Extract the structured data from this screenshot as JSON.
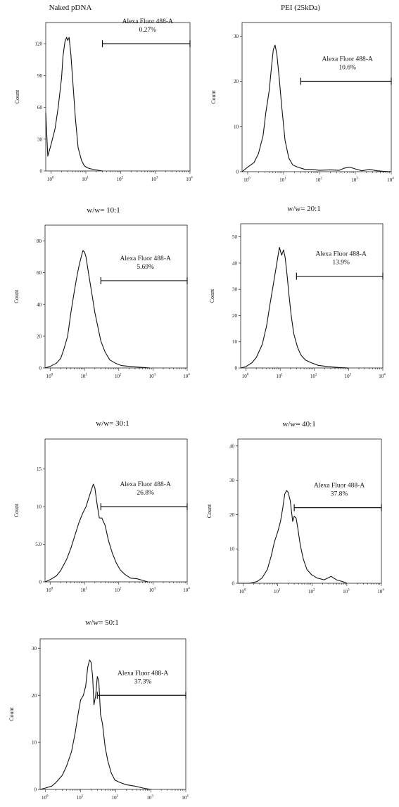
{
  "figure": {
    "y_axis_label": "Count"
  },
  "chart_data": [
    {
      "type": "histogram",
      "title": "Naked pDNA",
      "ylabel": "Count",
      "x_scale": "log",
      "xlim": [
        0.7,
        10000
      ],
      "ylim": [
        0,
        140
      ],
      "yticks": [
        0,
        30,
        60,
        90,
        120
      ],
      "x_ticks": [
        {
          "base": "10",
          "exp": "0"
        },
        {
          "base": "10",
          "exp": "1"
        },
        {
          "base": "10",
          "exp": "2"
        },
        {
          "base": "10",
          "exp": "3"
        },
        {
          "base": "10",
          "exp": "4"
        }
      ],
      "gate": {
        "name": "Alexa Fluor 488-A",
        "percent": "0.27%",
        "range": [
          30,
          10000
        ],
        "level": 120
      },
      "series": [
        {
          "x": [
            0.7,
            0.8,
            1.0,
            1.3,
            1.6,
            2.0,
            2.2,
            2.5,
            2.8,
            3.0,
            3.3,
            3.7,
            4.2,
            5.0,
            6.0,
            7.5,
            9.0,
            11.0,
            14.0,
            20.0,
            30.0
          ],
          "y": [
            55,
            14,
            25,
            40,
            60,
            88,
            108,
            122,
            126,
            123,
            126,
            110,
            85,
            50,
            22,
            10,
            5,
            3,
            2,
            1,
            0
          ]
        }
      ]
    },
    {
      "type": "histogram",
      "title": "PEI (25kDa)",
      "ylabel": "Count",
      "x_scale": "log",
      "xlim": [
        0.7,
        10000
      ],
      "ylim": [
        0,
        33
      ],
      "yticks": [
        0,
        10,
        20,
        30
      ],
      "x_ticks": [
        {
          "base": "10",
          "exp": "0"
        },
        {
          "base": "10",
          "exp": "1"
        },
        {
          "base": "10",
          "exp": "2"
        },
        {
          "base": "10",
          "exp": "3"
        },
        {
          "base": "10",
          "exp": "4"
        }
      ],
      "gate": {
        "name": "Alexa Fluor 488-A",
        "percent": "10.6%",
        "range": [
          30,
          10000
        ],
        "level": 20
      },
      "series": [
        {
          "x": [
            0.7,
            1.0,
            1.5,
            2.0,
            2.7,
            3.2,
            4.0,
            4.6,
            5.2,
            5.8,
            6.5,
            7.5,
            9.0,
            11.0,
            14.0,
            18.0,
            25.0,
            40.0,
            60.0,
            100.0,
            200.0,
            350.0,
            500.0,
            700.0,
            1000.0,
            1500.0,
            2500.0,
            4000.0,
            6000.0,
            10000.0
          ],
          "y": [
            0,
            1,
            2,
            4,
            8,
            13,
            18,
            23,
            27,
            28,
            26,
            21,
            14,
            7,
            3,
            1.5,
            1,
            0.5,
            0.5,
            0.3,
            0.4,
            0.3,
            0.8,
            1,
            0.6,
            0.2,
            0.5,
            0.2,
            0.1,
            0
          ]
        }
      ]
    },
    {
      "type": "histogram",
      "title": "w/w= 10:1",
      "ylabel": "Count",
      "x_scale": "log",
      "xlim": [
        0.7,
        10000
      ],
      "ylim": [
        0,
        90
      ],
      "yticks": [
        0,
        20,
        40,
        60,
        80
      ],
      "x_ticks": [
        {
          "base": "10",
          "exp": "0"
        },
        {
          "base": "10",
          "exp": "1"
        },
        {
          "base": "10",
          "exp": "2"
        },
        {
          "base": "10",
          "exp": "3"
        },
        {
          "base": "10",
          "exp": "4"
        }
      ],
      "gate": {
        "name": "Alexa Fluor 488-A",
        "percent": "5.69%",
        "range": [
          30,
          10000
        ],
        "level": 55
      },
      "series": [
        {
          "x": [
            0.7,
            1.0,
            1.5,
            2.0,
            2.5,
            3.2,
            4.0,
            5.0,
            6.0,
            7.0,
            8.0,
            9.0,
            10.0,
            11.0,
            13.0,
            16.0,
            20.0,
            25.0,
            30.0,
            40.0,
            55.0,
            80.0,
            120.0,
            200.0,
            400.0,
            800.0
          ],
          "y": [
            0,
            1,
            3,
            6,
            12,
            20,
            35,
            48,
            58,
            65,
            70,
            74,
            73,
            70,
            60,
            48,
            35,
            25,
            17,
            10,
            5,
            3,
            1.5,
            1,
            0.5,
            0
          ]
        }
      ]
    },
    {
      "type": "histogram",
      "title": "w/w= 20:1",
      "ylabel": "Count",
      "x_scale": "log",
      "xlim": [
        0.7,
        10000
      ],
      "ylim": [
        0,
        55
      ],
      "yticks": [
        0,
        10,
        20,
        30,
        40,
        50
      ],
      "x_ticks": [
        {
          "base": "10",
          "exp": "0"
        },
        {
          "base": "10",
          "exp": "1"
        },
        {
          "base": "10",
          "exp": "2"
        },
        {
          "base": "10",
          "exp": "3"
        },
        {
          "base": "10",
          "exp": "4"
        }
      ],
      "gate": {
        "name": "Alexa Fluor 488-A",
        "percent": "13.9%",
        "range": [
          30,
          10000
        ],
        "level": 35
      },
      "series": [
        {
          "x": [
            0.7,
            1.0,
            1.5,
            2.0,
            3.0,
            4.0,
            5.0,
            6.5,
            8.0,
            9.5,
            11.0,
            12.5,
            14.0,
            16.0,
            18.0,
            21.0,
            25.0,
            32.0,
            40.0,
            55.0,
            80.0,
            130.0,
            250.0,
            500.0,
            1000.0
          ],
          "y": [
            0,
            0.5,
            2,
            4,
            9,
            16,
            24,
            33,
            40,
            46,
            43,
            45,
            42,
            35,
            28,
            20,
            13,
            8,
            5,
            3,
            2,
            1,
            0.5,
            0.2,
            0
          ]
        }
      ]
    },
    {
      "type": "histogram",
      "title": "w/w= 30:1",
      "ylabel": "Count",
      "x_scale": "log",
      "xlim": [
        0.7,
        10000
      ],
      "ylim": [
        0,
        19
      ],
      "yticks": [
        0,
        5,
        10,
        15
      ],
      "ytick_labels": [
        "0",
        "5.0",
        "10",
        "15"
      ],
      "x_ticks": [
        {
          "base": "10",
          "exp": "0"
        },
        {
          "base": "10",
          "exp": "1"
        },
        {
          "base": "10",
          "exp": "2"
        },
        {
          "base": "10",
          "exp": "3"
        },
        {
          "base": "10",
          "exp": "4"
        }
      ],
      "gate": {
        "name": "Alexa Fluor 488-A",
        "percent": "26.8%",
        "range": [
          30,
          10000
        ],
        "level": 10
      },
      "series": [
        {
          "x": [
            0.7,
            1.0,
            1.5,
            2.0,
            3.0,
            4.0,
            5.5,
            7.0,
            9.0,
            11.0,
            14.0,
            16.0,
            18.0,
            20.0,
            23.0,
            27.0,
            32.0,
            40.0,
            50.0,
            65.0,
            85.0,
            110.0,
            150.0,
            220.0,
            350.0,
            500.0,
            700.0
          ],
          "y": [
            0,
            0.3,
            0.8,
            1.5,
            3,
            4.5,
            6.5,
            8,
            9.2,
            10,
            11.5,
            12.3,
            13,
            12.5,
            10.5,
            8.5,
            8.5,
            7.5,
            5.5,
            3.8,
            2.5,
            1.6,
            1.0,
            0.5,
            0.4,
            0.2,
            0
          ]
        }
      ]
    },
    {
      "type": "histogram",
      "title": "w/w= 40:1",
      "ylabel": "Count",
      "x_scale": "log",
      "xlim": [
        0.7,
        10000
      ],
      "ylim": [
        0,
        42
      ],
      "yticks": [
        0,
        10,
        20,
        30,
        40
      ],
      "x_ticks": [
        {
          "base": "10",
          "exp": "0"
        },
        {
          "base": "10",
          "exp": "1"
        },
        {
          "base": "10",
          "exp": "2"
        },
        {
          "base": "10",
          "exp": "3"
        },
        {
          "base": "10",
          "exp": "4"
        }
      ],
      "gate": {
        "name": "Alexa Fluor 488-A",
        "percent": "37.8%",
        "range": [
          30,
          10000
        ],
        "level": 22
      },
      "series": [
        {
          "x": [
            0.7,
            1.5,
            2.5,
            3.5,
            5.0,
            6.5,
            8.0,
            10.0,
            12.0,
            14.0,
            16.0,
            18.0,
            20.0,
            23.0,
            27.0,
            30.0,
            34.0,
            38.0,
            45.0,
            55.0,
            70.0,
            95.0,
            140.0,
            220.0,
            350.0,
            500.0,
            750.0,
            1000.0
          ],
          "y": [
            0,
            0,
            0.5,
            1.5,
            4,
            8,
            12,
            15,
            18,
            22,
            26,
            27,
            26.5,
            24,
            18,
            19.5,
            19,
            16,
            11,
            7,
            4,
            2.5,
            1.5,
            1,
            2,
            1,
            0.5,
            0
          ]
        }
      ]
    },
    {
      "type": "histogram",
      "title": "w/w= 50:1",
      "ylabel": "Count",
      "x_scale": "log",
      "xlim": [
        0.7,
        10000
      ],
      "ylim": [
        0,
        32
      ],
      "yticks": [
        0,
        10,
        20,
        30
      ],
      "x_ticks": [
        {
          "base": "10",
          "exp": "0"
        },
        {
          "base": "10",
          "exp": "1"
        },
        {
          "base": "10",
          "exp": "2"
        },
        {
          "base": "10",
          "exp": "3"
        },
        {
          "base": "10",
          "exp": "4"
        }
      ],
      "gate": {
        "name": "Alexa Fluor 488-A",
        "percent": "37.3%",
        "range": [
          30,
          10000
        ],
        "level": 20
      },
      "series": [
        {
          "x": [
            0.7,
            1.0,
            1.5,
            2.0,
            3.0,
            4.0,
            5.5,
            7.0,
            8.5,
            10.0,
            12.0,
            14.0,
            16.0,
            18.0,
            20.0,
            22.0,
            24.0,
            27.0,
            30.0,
            33.0,
            37.0,
            42.0,
            50.0,
            60.0,
            75.0,
            95.0,
            130.0,
            200.0,
            350.0,
            600.0,
            1000.0
          ],
          "y": [
            0,
            0.3,
            0.7,
            1.5,
            3,
            5,
            8,
            12,
            16,
            19,
            20,
            22,
            26,
            27.5,
            27,
            24,
            18,
            20,
            24,
            23,
            16,
            14,
            9,
            6,
            3.5,
            2,
            1.5,
            1,
            0.7,
            0.3,
            0
          ]
        }
      ]
    }
  ]
}
